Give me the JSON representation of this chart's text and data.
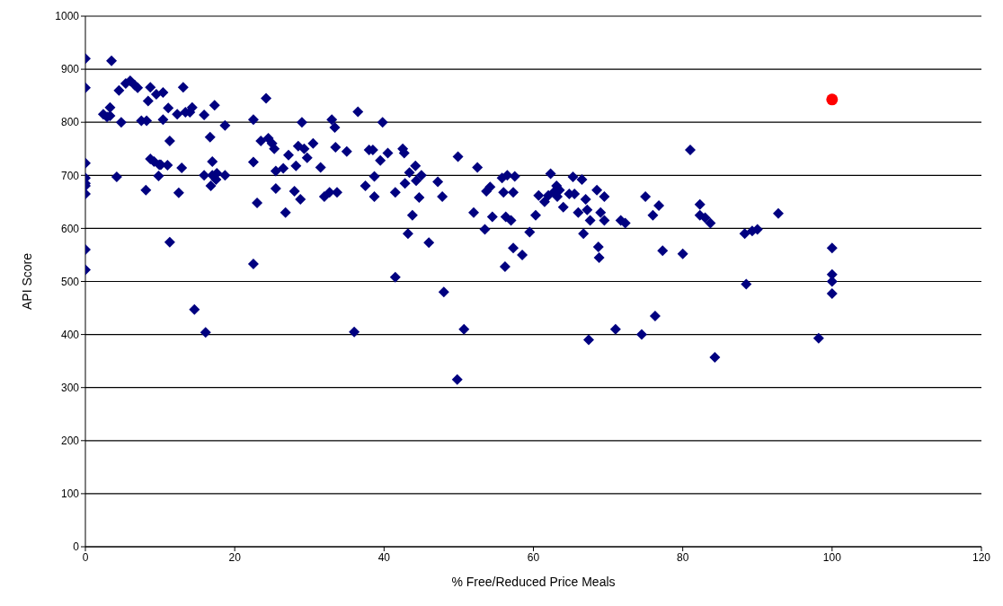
{
  "chart_data": {
    "type": "scatter",
    "xlabel": "% Free/Reduced Price Meals",
    "ylabel": "API Score",
    "xlim": [
      0,
      120
    ],
    "xticks": [
      0,
      20,
      40,
      60,
      80,
      100,
      120
    ],
    "ylim": [
      0,
      1000
    ],
    "yticks": [
      0,
      100,
      200,
      300,
      400,
      500,
      600,
      700,
      800,
      900,
      1000
    ],
    "grid": "y",
    "marker": "diamond",
    "series": [
      {
        "color": "#000080",
        "x": [
          0,
          0,
          0,
          0,
          0,
          0,
          0,
          0,
          0,
          3.5,
          2.4,
          2.9,
          3.3,
          3.3,
          4.2,
          4.8,
          4.5,
          5.4,
          6,
          6.6,
          7,
          7.5,
          8.2,
          8.4,
          8.7,
          8.1,
          8.7,
          9.2,
          9.8,
          9.9,
          9.5,
          10.4,
          10.4,
          10.1,
          11,
          11.1,
          11.3,
          11.3,
          12.3,
          12.5,
          12.9,
          13.1,
          13.4,
          14,
          14.3,
          14.6,
          15.9,
          15.9,
          16.1,
          16.7,
          16.8,
          17,
          17,
          17.3,
          17.5,
          17.6,
          18.7,
          18.7,
          22.5,
          22.5,
          22.5,
          23,
          23.5,
          24.5,
          24.2,
          25,
          25.3,
          25.5,
          25.5,
          26.5,
          26.8,
          27.2,
          28,
          28.2,
          28.5,
          28.8,
          29,
          29.3,
          29.7,
          30.5,
          31.5,
          32,
          32.7,
          33,
          33.4,
          33.5,
          33.7,
          35,
          36,
          36.5,
          37.5,
          38,
          38.5,
          38.7,
          38.7,
          39.5,
          39.8,
          40.5,
          41.5,
          41.5,
          42.5,
          42.7,
          42.8,
          43.2,
          43.4,
          43.8,
          44.2,
          44.3,
          44.7,
          45,
          46,
          47.2,
          47.8,
          48,
          49.8,
          49.9,
          50.7,
          52,
          52.5,
          53.5,
          53.7,
          54.2,
          54.5,
          55.8,
          56,
          56.2,
          56.3,
          56.5,
          57,
          57.3,
          57.3,
          57.5,
          58.5,
          59.5,
          60.3,
          60.7,
          61.5,
          62,
          62.3,
          62.7,
          63.1,
          63.2,
          63.5,
          64,
          64.8,
          65.3,
          65.5,
          66,
          66.5,
          66.7,
          67,
          67.2,
          67.4,
          67.6,
          68.5,
          68.7,
          68.8,
          69,
          69.5,
          69.5,
          71,
          71.7,
          72.3,
          74.5,
          75,
          76,
          76.3,
          76.8,
          77.3,
          80,
          81,
          82.3,
          82.3,
          83,
          83.7,
          84.3,
          88.3,
          88.5,
          89.3,
          90,
          92.8,
          98.2,
          100,
          100,
          100,
          100
        ],
        "values": [
          920,
          865,
          723,
          695,
          685,
          680,
          665,
          560,
          522,
          916,
          815,
          810,
          828,
          812,
          697,
          800,
          860,
          873,
          878,
          870,
          865,
          803,
          803,
          840,
          866,
          672,
          731,
          726,
          699,
          720,
          853,
          856,
          805,
          720,
          719,
          827,
          765,
          574,
          815,
          667,
          714,
          866,
          819,
          819,
          828,
          447,
          814,
          700,
          404,
          772,
          680,
          700,
          726,
          832,
          692,
          704,
          794,
          700,
          805,
          725,
          533,
          648,
          765,
          770,
          845,
          760,
          750,
          708,
          675,
          713,
          630,
          738,
          670,
          718,
          755,
          655,
          800,
          750,
          733,
          760,
          715,
          660,
          668,
          805,
          790,
          753,
          668,
          745,
          405,
          820,
          680,
          748,
          748,
          698,
          660,
          728,
          800,
          742,
          668,
          508,
          750,
          742,
          685,
          590,
          705,
          625,
          718,
          690,
          658,
          700,
          573,
          688,
          660,
          480,
          315,
          735,
          410,
          630,
          715,
          598,
          670,
          678,
          622,
          695,
          668,
          528,
          622,
          700,
          615,
          563,
          668,
          698,
          550,
          593,
          625,
          662,
          650,
          662,
          703,
          668,
          680,
          660,
          672,
          640,
          665,
          697,
          665,
          630,
          692,
          590,
          655,
          635,
          390,
          615,
          672,
          565,
          545,
          630,
          660,
          615,
          410,
          615,
          610,
          400,
          660,
          625,
          435,
          643,
          558,
          552,
          748,
          645,
          625,
          620,
          610,
          357,
          590,
          495,
          595,
          598,
          628,
          393,
          563,
          513,
          500,
          477
        ]
      },
      {
        "color": "#ff0000",
        "marker": "circle",
        "x": [
          100
        ],
        "values": [
          843
        ]
      }
    ]
  }
}
